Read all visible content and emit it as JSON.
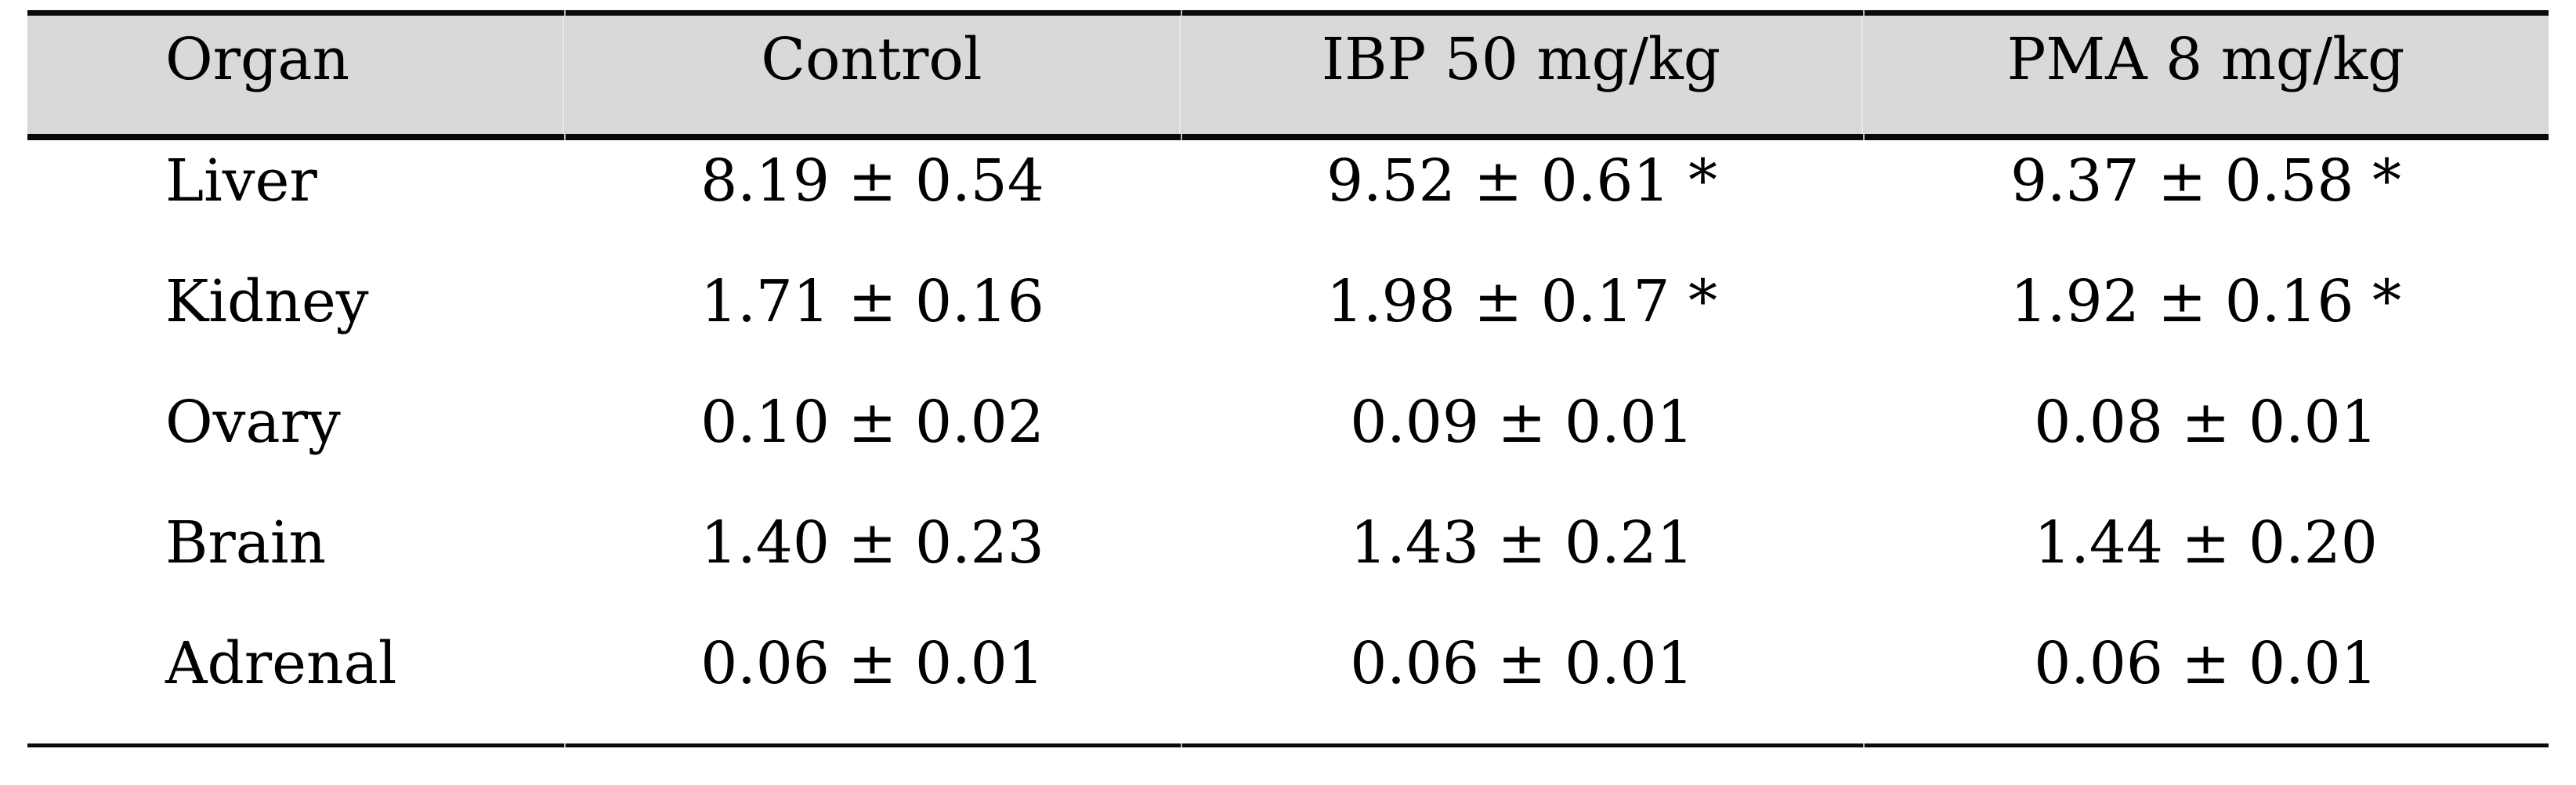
{
  "table": {
    "title_semantic": "organ-weight-table",
    "columns": [
      "Organ",
      "Control",
      "IBP 50 mg/kg",
      "PMA 8 mg/kg"
    ],
    "rows": [
      [
        "Liver",
        "8.19 ± 0.54",
        "9.52 ± 0.61 *",
        "9.37 ± 0.58 *"
      ],
      [
        "Kidney",
        "1.71 ± 0.16",
        "1.98 ± 0.17 *",
        "1.92 ± 0.16 *"
      ],
      [
        "Ovary",
        "0.10 ± 0.02",
        "0.09 ± 0.01",
        "0.08 ± 0.01"
      ],
      [
        "Brain",
        "1.40 ± 0.23",
        "1.43 ± 0.21",
        "1.44 ± 0.20"
      ],
      [
        "Adrenal",
        "0.06 ± 0.01",
        "0.06 ± 0.01",
        "0.06 ± 0.01"
      ]
    ],
    "significance_marker": "*"
  },
  "colors": {
    "header_bg": "#d9d9d9",
    "rule": "#0a0a0a",
    "cell_divider": "#e9e9e9",
    "text": "#000000",
    "page_bg": "#ffffff"
  }
}
